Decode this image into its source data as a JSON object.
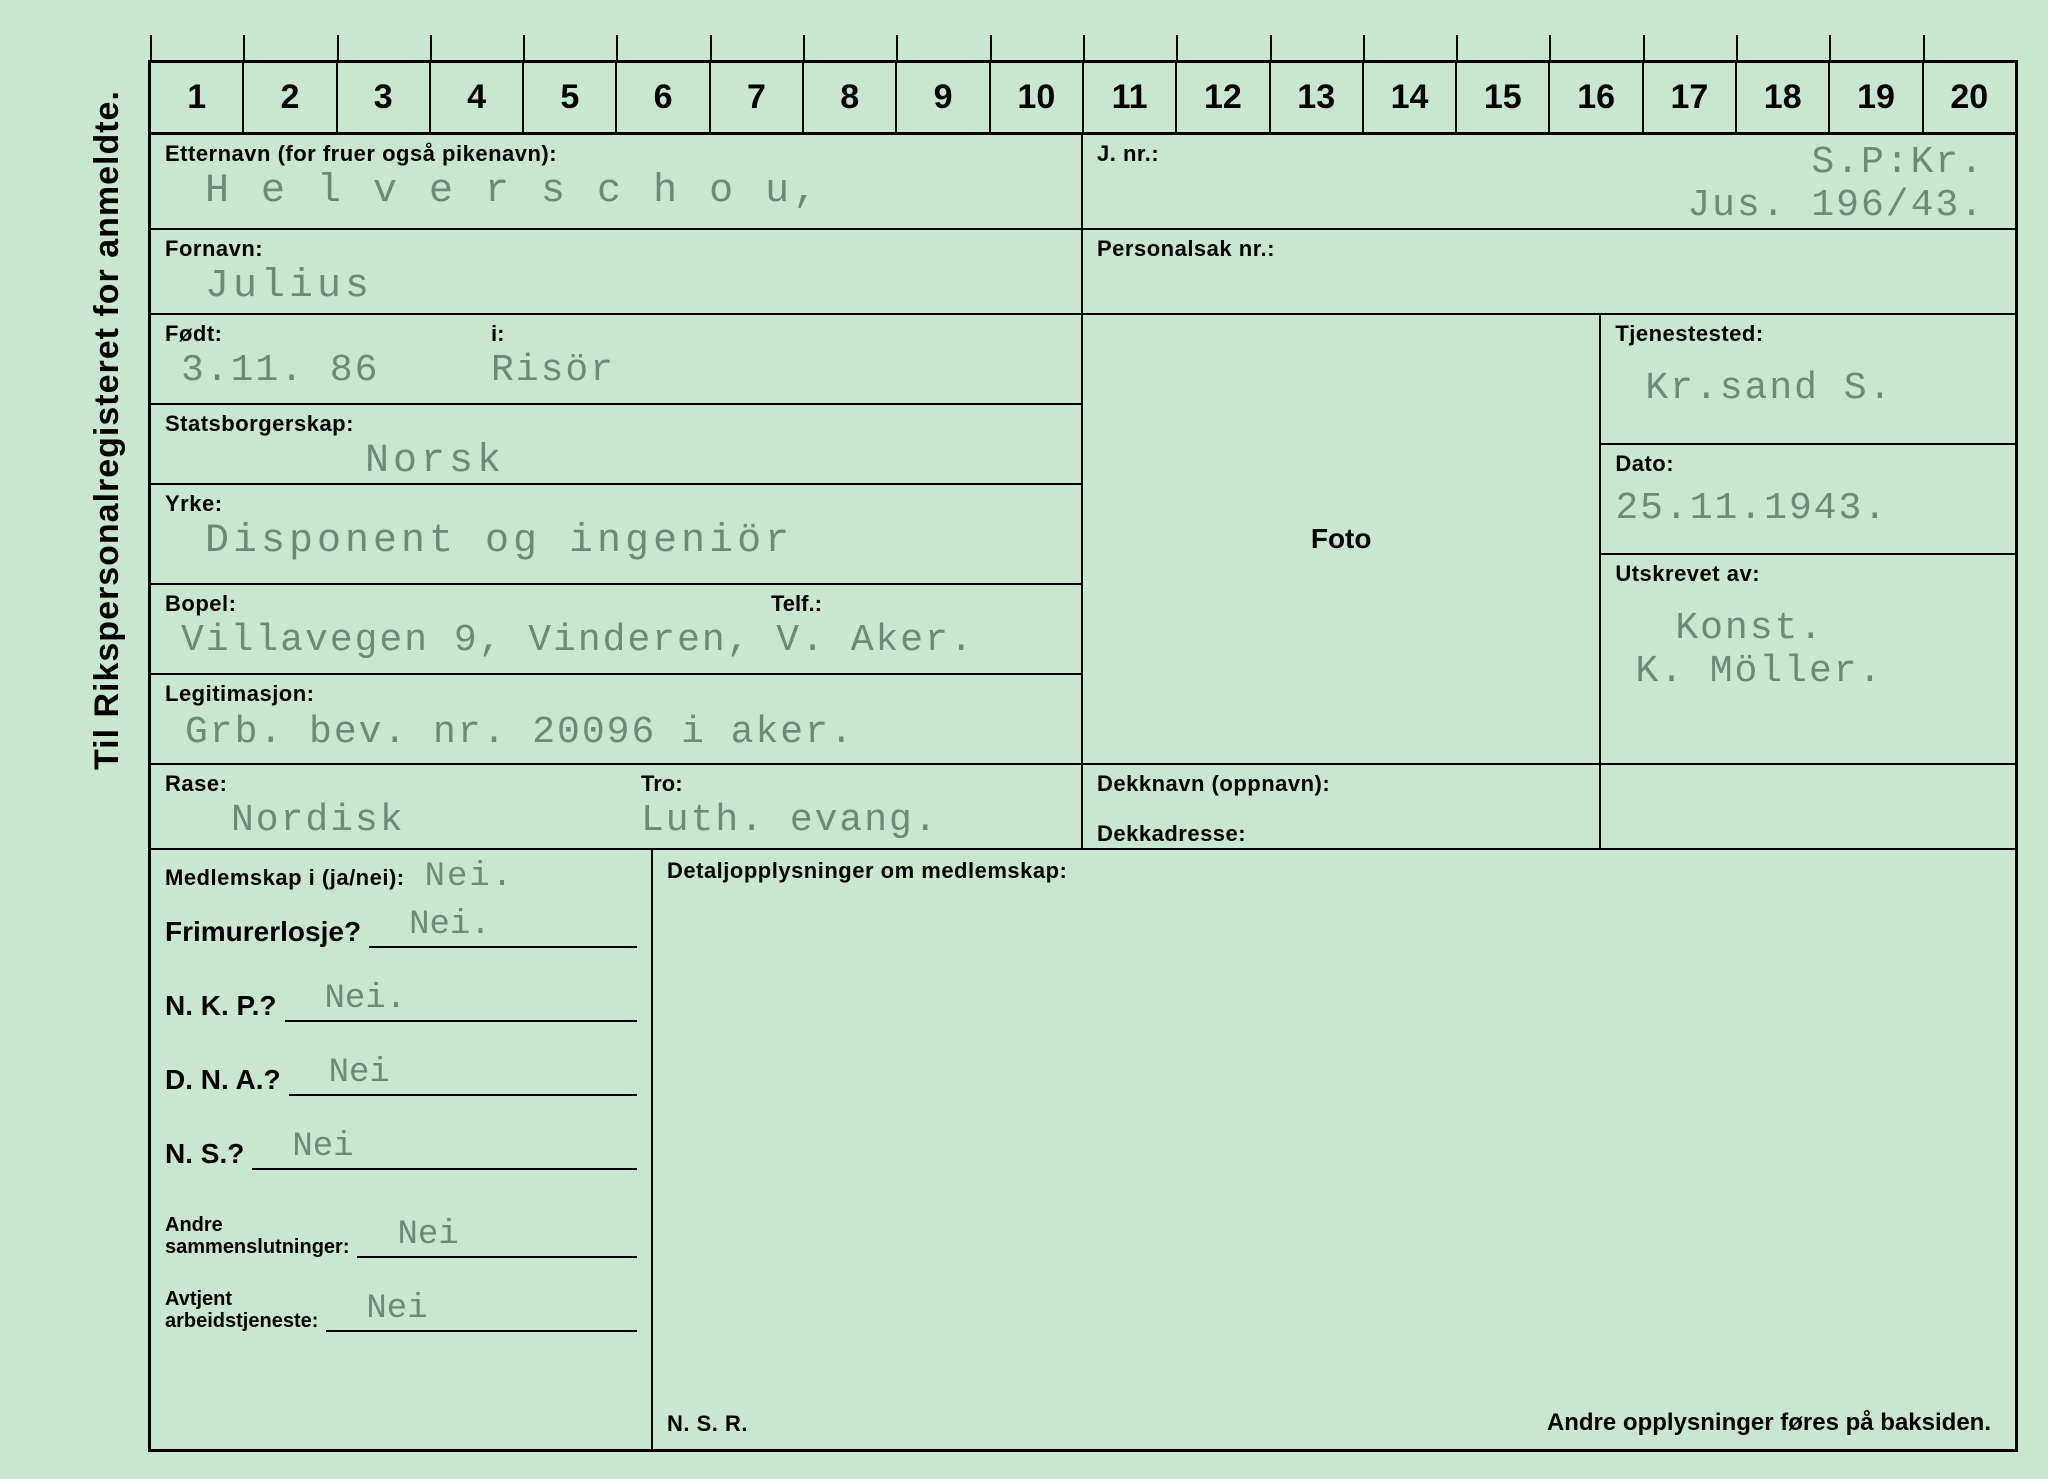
{
  "sideText": "Til Rikspersonalregisteret for anmeldte.",
  "ruler": [
    "1",
    "2",
    "3",
    "4",
    "5",
    "6",
    "7",
    "8",
    "9",
    "10",
    "11",
    "12",
    "13",
    "14",
    "15",
    "16",
    "17",
    "18",
    "19",
    "20"
  ],
  "labels": {
    "etternavn": "Etternavn (for fruer også pikenavn):",
    "fornavn": "Fornavn:",
    "fodt": "Født:",
    "i": "i:",
    "statsborgerskap": "Statsborgerskap:",
    "yrke": "Yrke:",
    "bopel": "Bopel:",
    "telf": "Telf.:",
    "legitimasjon": "Legitimasjon:",
    "rase": "Rase:",
    "tro": "Tro:",
    "jnr": "J. nr.:",
    "personalsak": "Personalsak nr.:",
    "foto": "Foto",
    "dekknavn": "Dekknavn (oppnavn):",
    "dekkadresse": "Dekkadresse:",
    "tjenestested": "Tjenestested:",
    "dato": "Dato:",
    "utskrevet": "Utskrevet av:",
    "medlemskap": "Medlemskap i (ja/nei):",
    "frimurer": "Frimurerlosje?",
    "nkp": "N. K. P.?",
    "dna": "D. N. A.?",
    "ns": "N. S.?",
    "andre": "Andre\nsammenslutninger:",
    "avtjent": "Avtjent\narbeidstjeneste:",
    "detalj": "Detaljopplysninger om medlemskap:",
    "nsr": "N. S. R.",
    "footer": "Andre opplysninger føres på baksiden."
  },
  "vals": {
    "etternavn": "H e l v e r s c h o u,",
    "fornavn": "Julius",
    "fodt": "3.11. 86",
    "i": "Risör",
    "statsborgerskap": "Norsk",
    "yrke": "Disponent og ingeniör",
    "bopel": "Villavegen 9, Vinderen, V. Aker.",
    "legitimasjon": "Grb. bev. nr. 20096 i aker.",
    "rase": "Nordisk",
    "tro": "Luth. evang.",
    "jnr1": "S.P:Kr.",
    "jnr2": "Jus. 196/43.",
    "tjenestested": "Kr.sand S.",
    "dato": "25.11.1943.",
    "utskrevet1": "Konst.",
    "utskrevet2": "K. Möller.",
    "mem_header": "Nei.",
    "frimurer": "Nei.",
    "nkp": "Nei.",
    "dna": "Nei",
    "ns": "Nei",
    "andre": "Nei",
    "avtjent": "Nei"
  },
  "colors": {
    "bg": "#c8e6d0",
    "typed": "#6b8a7a",
    "ink": "#000000"
  }
}
